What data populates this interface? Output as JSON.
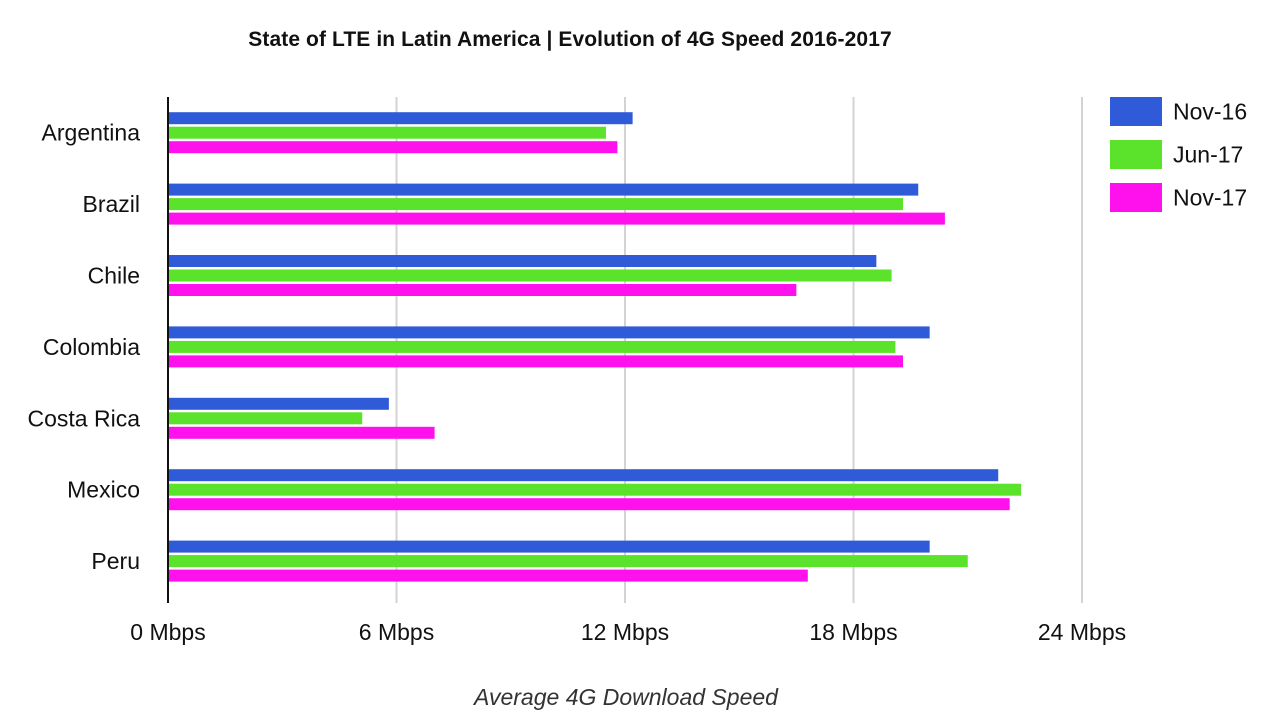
{
  "chart_data": {
    "type": "bar",
    "orientation": "horizontal",
    "title": "State of LTE in Latin America | Evolution of 4G Speed 2016-2017",
    "xlabel": "Average 4G Download Speed",
    "ylabel": "",
    "categories": [
      "Argentina",
      "Brazil",
      "Chile",
      "Colombia",
      "Costa Rica",
      "Mexico",
      "Peru"
    ],
    "series": [
      {
        "name": "Nov-16",
        "color": "#2f5bd9",
        "values": [
          12.2,
          19.7,
          18.6,
          20.0,
          5.8,
          21.8,
          20.0
        ]
      },
      {
        "name": "Jun-17",
        "color": "#5be22a",
        "values": [
          11.5,
          19.3,
          19.0,
          19.1,
          5.1,
          22.4,
          21.0
        ]
      },
      {
        "name": "Nov-17",
        "color": "#ff11ee",
        "values": [
          11.8,
          20.4,
          16.5,
          19.3,
          7.0,
          22.1,
          16.8
        ]
      }
    ],
    "xlim": [
      0,
      24
    ],
    "xticks": [
      0,
      6,
      12,
      18,
      24
    ],
    "xtick_labels": [
      "0 Mbps",
      "6 Mbps",
      "12 Mbps",
      "18 Mbps",
      "24 Mbps"
    ],
    "grid": true,
    "legend_position": "top-right"
  }
}
